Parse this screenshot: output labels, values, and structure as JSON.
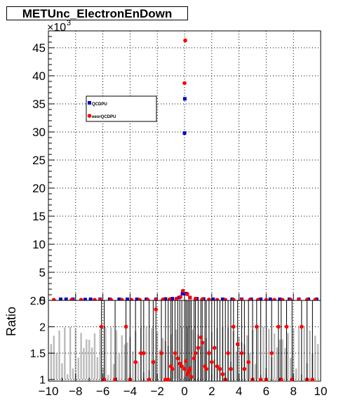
{
  "title": "METUnc_ElectronEnDown",
  "chart_data": [
    {
      "type": "scatter",
      "title": "METUnc_ElectronEnDown",
      "xlim": [
        -10,
        10
      ],
      "ylim": [
        0,
        48000
      ],
      "y_exponent_label": "×10",
      "y_exponent_power": "3",
      "yticks": [
        "0",
        "5",
        "10",
        "15",
        "20",
        "25",
        "30",
        "35",
        "40",
        "45"
      ],
      "grid": true,
      "legend": {
        "position": "top-left",
        "entries": [
          "QCDPU",
          "eeorQCDPU"
        ]
      },
      "series": [
        {
          "name": "QCDPU",
          "color": "#0000cc",
          "marker": "square",
          "points": [
            [
              -9.1,
              200
            ],
            [
              -8.7,
              200
            ],
            [
              -8.2,
              200
            ],
            [
              -7.3,
              150
            ],
            [
              -6.9,
              200
            ],
            [
              -6.2,
              200
            ],
            [
              -5.5,
              200
            ],
            [
              -4.8,
              200
            ],
            [
              -4.2,
              200
            ],
            [
              -3.5,
              200
            ],
            [
              -2.8,
              200
            ],
            [
              -2.1,
              200
            ],
            [
              -1.4,
              250
            ],
            [
              -0.9,
              300
            ],
            [
              -0.4,
              500
            ],
            [
              -0.15,
              1200
            ],
            [
              0.0,
              29800
            ],
            [
              0.02,
              35900
            ],
            [
              0.15,
              1200
            ],
            [
              0.4,
              500
            ],
            [
              0.9,
              300
            ],
            [
              1.4,
              250
            ],
            [
              2.1,
              200
            ],
            [
              2.8,
              200
            ],
            [
              3.5,
              200
            ],
            [
              4.2,
              200
            ],
            [
              4.9,
              200
            ],
            [
              5.6,
              200
            ],
            [
              6.3,
              200
            ],
            [
              7.0,
              200
            ],
            [
              7.7,
              200
            ],
            [
              8.4,
              200
            ],
            [
              9.1,
              200
            ],
            [
              9.7,
              200
            ]
          ]
        },
        {
          "name": "eeorQCDPU",
          "color": "#ff0000",
          "marker": "circle",
          "points": [
            [
              -9.6,
              100
            ],
            [
              -8.3,
              100
            ],
            [
              -7.6,
              100
            ],
            [
              -6.6,
              100
            ],
            [
              -6.2,
              100
            ],
            [
              -5.4,
              100
            ],
            [
              -4.6,
              100
            ],
            [
              -3.9,
              100
            ],
            [
              -3.3,
              100
            ],
            [
              -2.7,
              100
            ],
            [
              -2.1,
              100
            ],
            [
              -1.6,
              150
            ],
            [
              -1.1,
              200
            ],
            [
              -0.6,
              300
            ],
            [
              -0.3,
              600
            ],
            [
              -0.12,
              1700
            ],
            [
              0.0,
              38700
            ],
            [
              0.05,
              46300
            ],
            [
              0.2,
              1100
            ],
            [
              0.4,
              500
            ],
            [
              0.8,
              300
            ],
            [
              1.3,
              200
            ],
            [
              1.8,
              150
            ],
            [
              2.4,
              100
            ],
            [
              3.0,
              100
            ],
            [
              3.6,
              100
            ],
            [
              4.2,
              100
            ],
            [
              4.8,
              100
            ],
            [
              5.4,
              100
            ],
            [
              6.0,
              100
            ],
            [
              6.6,
              100
            ],
            [
              7.2,
              100
            ],
            [
              7.8,
              100
            ],
            [
              8.4,
              100
            ],
            [
              9.0,
              100
            ],
            [
              9.6,
              100
            ]
          ]
        }
      ]
    },
    {
      "type": "scatter",
      "ylabel": "Ratio",
      "xlim": [
        -10,
        10
      ],
      "ylim": [
        0.97,
        2.5
      ],
      "yticks": [
        "1",
        "1.5",
        "2",
        "2.5"
      ],
      "xticks": [
        "−10",
        "−8",
        "−6",
        "−4",
        "−2",
        "0",
        "2",
        "4",
        "6",
        "8",
        "10"
      ],
      "grid": true,
      "series": [
        {
          "name": "ratio",
          "color": "#ff0000",
          "marker": "circle",
          "points": [
            [
              -6.1,
              2.0
            ],
            [
              -5.9,
              1.0
            ],
            [
              -5.1,
              1.0
            ],
            [
              -4.3,
              2.0
            ],
            [
              -4.0,
              1.0
            ],
            [
              -3.6,
              1.33
            ],
            [
              -3.2,
              1.5
            ],
            [
              -3.0,
              1.5
            ],
            [
              -2.6,
              1.0
            ],
            [
              -2.3,
              1.33
            ],
            [
              -2.1,
              2.33
            ],
            [
              -1.7,
              1.5
            ],
            [
              -1.4,
              1.0
            ],
            [
              -1.2,
              1.0
            ],
            [
              -1.0,
              1.25
            ],
            [
              -0.9,
              1.2
            ],
            [
              -0.7,
              1.5
            ],
            [
              -0.5,
              1.4
            ],
            [
              -0.35,
              1.3
            ],
            [
              -0.2,
              1.25
            ],
            [
              0.0,
              1.2
            ],
            [
              0.1,
              1.35
            ],
            [
              0.2,
              1.1
            ],
            [
              0.3,
              1.15
            ],
            [
              0.4,
              1.2
            ],
            [
              0.5,
              1.05
            ],
            [
              0.7,
              1.4
            ],
            [
              0.8,
              1.5
            ],
            [
              1.0,
              1.6
            ],
            [
              1.2,
              1.8
            ],
            [
              1.3,
              1.7
            ],
            [
              1.5,
              1.25
            ],
            [
              1.6,
              1.2
            ],
            [
              1.8,
              1.5
            ],
            [
              2.0,
              1.33
            ],
            [
              2.2,
              1.6
            ],
            [
              2.4,
              1.25
            ],
            [
              2.6,
              1.2
            ],
            [
              2.8,
              1.1
            ],
            [
              3.0,
              1.0
            ],
            [
              3.2,
              1.5
            ],
            [
              3.4,
              1.2
            ],
            [
              3.6,
              2.0
            ],
            [
              3.9,
              1.67
            ],
            [
              4.2,
              1.5
            ],
            [
              4.4,
              1.2
            ],
            [
              4.7,
              1.33
            ],
            [
              5.0,
              1.0
            ],
            [
              5.3,
              2.0
            ],
            [
              5.6,
              1.0
            ],
            [
              6.0,
              1.0
            ],
            [
              6.4,
              1.5
            ],
            [
              6.9,
              2.0
            ],
            [
              7.1,
              1.0
            ],
            [
              7.5,
              2.0
            ],
            [
              7.9,
              1.0
            ],
            [
              8.6,
              2.0
            ],
            [
              9.0,
              1.0
            ],
            [
              9.4,
              1.0
            ]
          ]
        }
      ]
    }
  ]
}
